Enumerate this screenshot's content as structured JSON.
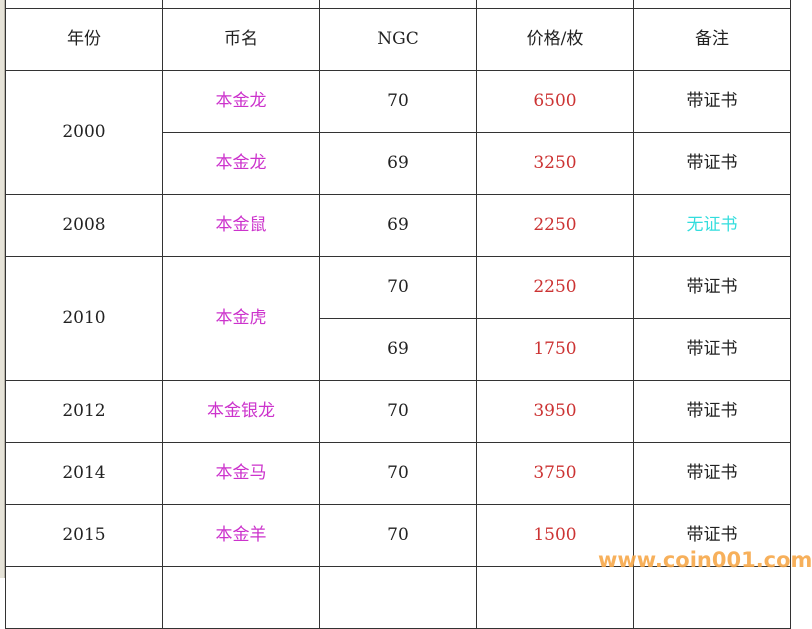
{
  "headers": [
    "年份",
    "币名",
    "NGC",
    "价格/枚",
    "备注"
  ],
  "rows": [
    {
      "year": "2000",
      "name": "本金龙",
      "ngc": "70",
      "price": "6500",
      "note": "带证书"
    },
    {
      "year": "",
      "name": "本金龙",
      "ngc": "69",
      "price": "3250",
      "note": "带证书"
    },
    {
      "year": "2008",
      "name": "本金鼠",
      "ngc": "69",
      "price": "2250",
      "note": "无证书"
    },
    {
      "year": "2010",
      "name": "本金虎",
      "ngc": "70",
      "price": "2250",
      "note": "带证书"
    },
    {
      "year": "",
      "name": "",
      "ngc": "69",
      "price": "1750",
      "note": "带证书"
    },
    {
      "year": "2012",
      "name": "本金银龙",
      "ngc": "70",
      "price": "3950",
      "note": "带证书"
    },
    {
      "year": "2014",
      "name": "本金马",
      "ngc": "70",
      "price": "3750",
      "note": "带证书"
    },
    {
      "year": "2015",
      "name": "本金羊",
      "ngc": "70",
      "price": "1500",
      "note": "带证书"
    }
  ],
  "watermark": "www.coin001.com",
  "colors": {
    "name": "#cc33cc",
    "price": "#cc3333",
    "no_cert": "#33dddd",
    "watermark": "#f7a84a"
  }
}
